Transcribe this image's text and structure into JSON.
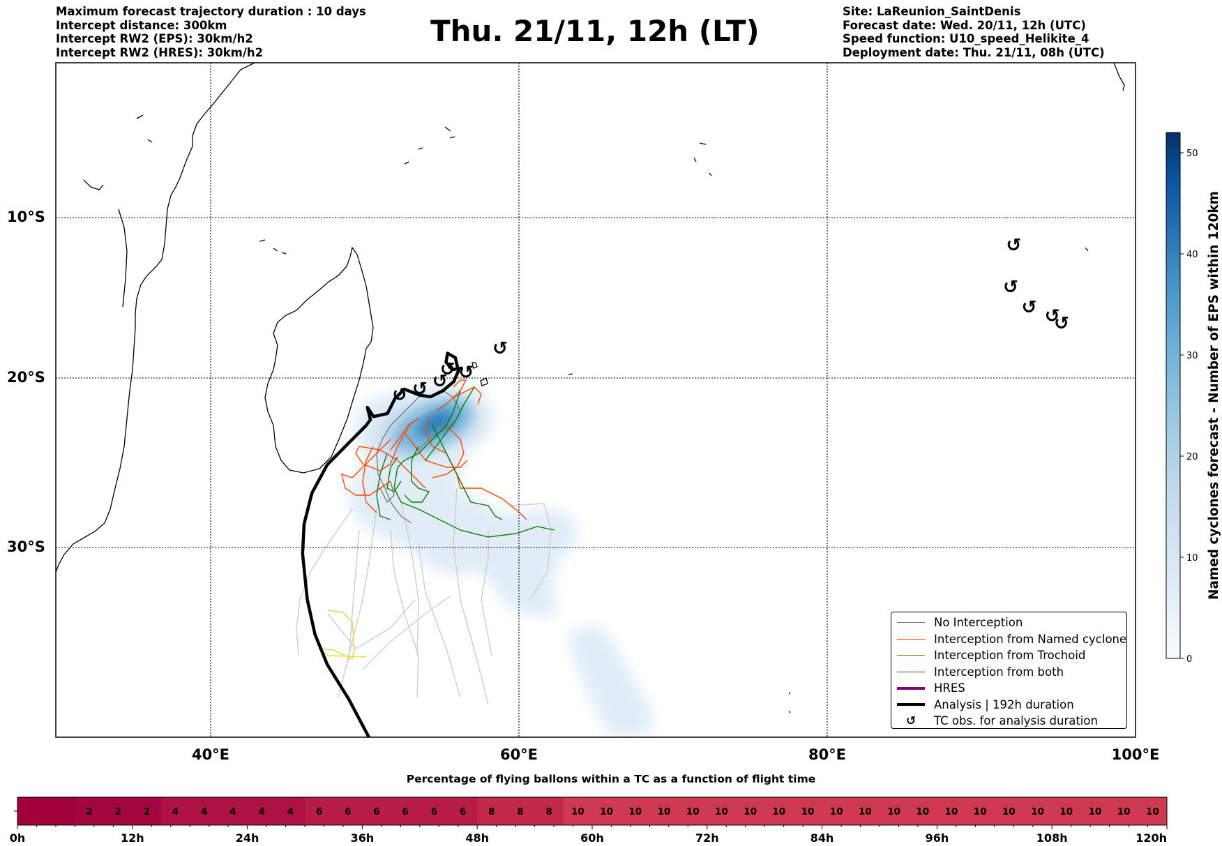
{
  "header": {
    "title": "Thu. 21/11, 12h (LT)",
    "left": [
      "Maximum forecast trajectory duration : 10 days",
      "Intercept distance: 300km",
      "Intercept RW2 (EPS):  30km/h2",
      "Intercept RW2 (HRES): 30km/h2"
    ],
    "right": [
      "Site: LaReunion_SaintDenis",
      "Forecast date: Wed. 20/11, 12h (UTC)",
      "Speed function: U10_speed_Helikite_4",
      "Deployment date: Thu. 21/11, 08h (UTC)"
    ]
  },
  "map": {
    "lon_range": [
      30,
      100
    ],
    "lat_range": [
      -43.5,
      0
    ],
    "lat_ticks": [
      {
        "value": -10,
        "label": "10°S"
      },
      {
        "value": -20,
        "label": "20°S"
      },
      {
        "value": -30,
        "label": "30°S"
      }
    ],
    "lon_ticks": [
      {
        "value": 40,
        "label": "40°E"
      },
      {
        "value": 60,
        "label": "60°E"
      },
      {
        "value": 80,
        "label": "80°E"
      },
      {
        "value": 100,
        "label": "100°E"
      }
    ],
    "gridlines": true,
    "tc_obs_symbol": "↺",
    "tc_obs": [
      [
        58.8,
        -20.1
      ],
      [
        56.6,
        -21.7
      ],
      [
        55.4,
        -21.5
      ],
      [
        54.9,
        -22.3
      ],
      [
        53.6,
        -22.8
      ],
      [
        52.3,
        -23.2
      ],
      [
        92.1,
        -13.0
      ],
      [
        91.9,
        -15.9
      ],
      [
        93.1,
        -17.3
      ],
      [
        94.6,
        -17.9
      ],
      [
        95.2,
        -18.4
      ]
    ],
    "analysis_track": [
      [
        50.3,
        -43.5
      ],
      [
        49.0,
        -41.5
      ],
      [
        47.6,
        -39.6
      ],
      [
        46.8,
        -37.9
      ],
      [
        46.3,
        -35.9
      ],
      [
        46.0,
        -33.2
      ],
      [
        46.1,
        -31.4
      ],
      [
        46.6,
        -29.5
      ],
      [
        47.6,
        -27.7
      ],
      [
        48.8,
        -26.5
      ],
      [
        50.1,
        -25.2
      ],
      [
        50.4,
        -24.8
      ],
      [
        50.2,
        -24.0
      ],
      [
        50.6,
        -24.6
      ],
      [
        51.5,
        -24.4
      ],
      [
        52.0,
        -23.4
      ],
      [
        52.6,
        -22.8
      ],
      [
        53.6,
        -23.2
      ],
      [
        54.3,
        -23.3
      ],
      [
        55.1,
        -22.9
      ],
      [
        55.8,
        -22.3
      ],
      [
        56.1,
        -21.6
      ],
      [
        55.9,
        -20.7
      ],
      [
        55.4,
        -20.4
      ],
      [
        55.3,
        -21.0
      ],
      [
        55.7,
        -21.5
      ],
      [
        56.3,
        -21.4
      ]
    ]
  },
  "legend": {
    "items": [
      {
        "label": "No Interception",
        "color": "#777777",
        "style": "thin"
      },
      {
        "label": "Interception from Named cyclone",
        "color": "#ff4500",
        "style": "thin"
      },
      {
        "label": "Interception from Trochoid",
        "color": "#808000",
        "style": "thin"
      },
      {
        "label": "Interception from both",
        "color": "#008000",
        "style": "thin"
      },
      {
        "label": "HRES",
        "color": "#800080",
        "style": "thick"
      },
      {
        "label": "Analysis | 192h duration",
        "color": "#000000",
        "style": "thick"
      },
      {
        "label": "TC obs. for analysis duration",
        "color": "#000000",
        "style": "symbol"
      }
    ]
  },
  "colorbar": {
    "label": "Named cyclones forecast - Number of EPS within 120km",
    "min": 0,
    "max": 52,
    "ticks": [
      "0",
      "10",
      "20",
      "30",
      "40",
      "50"
    ],
    "colors": [
      "#f7fbff",
      "#deebf7",
      "#c6dbef",
      "#9ecae1",
      "#6baed6",
      "#4292c6",
      "#2171b5",
      "#08519c",
      "#08306b"
    ]
  },
  "timeline": {
    "title": "Percentage of flying ballons within a TC as a function of flight time",
    "cells": [
      "",
      "",
      "2",
      "2",
      "2",
      "4",
      "4",
      "4",
      "4",
      "4",
      "6",
      "6",
      "6",
      "6",
      "6",
      "6",
      "8",
      "8",
      "8",
      "10",
      "10",
      "10",
      "10",
      "10",
      "10",
      "10",
      "10",
      "10",
      "10",
      "10",
      "10",
      "10",
      "10",
      "10",
      "10",
      "10",
      "10",
      "10",
      "10",
      "10"
    ],
    "tick_labels": [
      "0h",
      "12h",
      "24h",
      "36h",
      "48h",
      "60h",
      "72h",
      "84h",
      "96h",
      "108h",
      "120h"
    ]
  }
}
